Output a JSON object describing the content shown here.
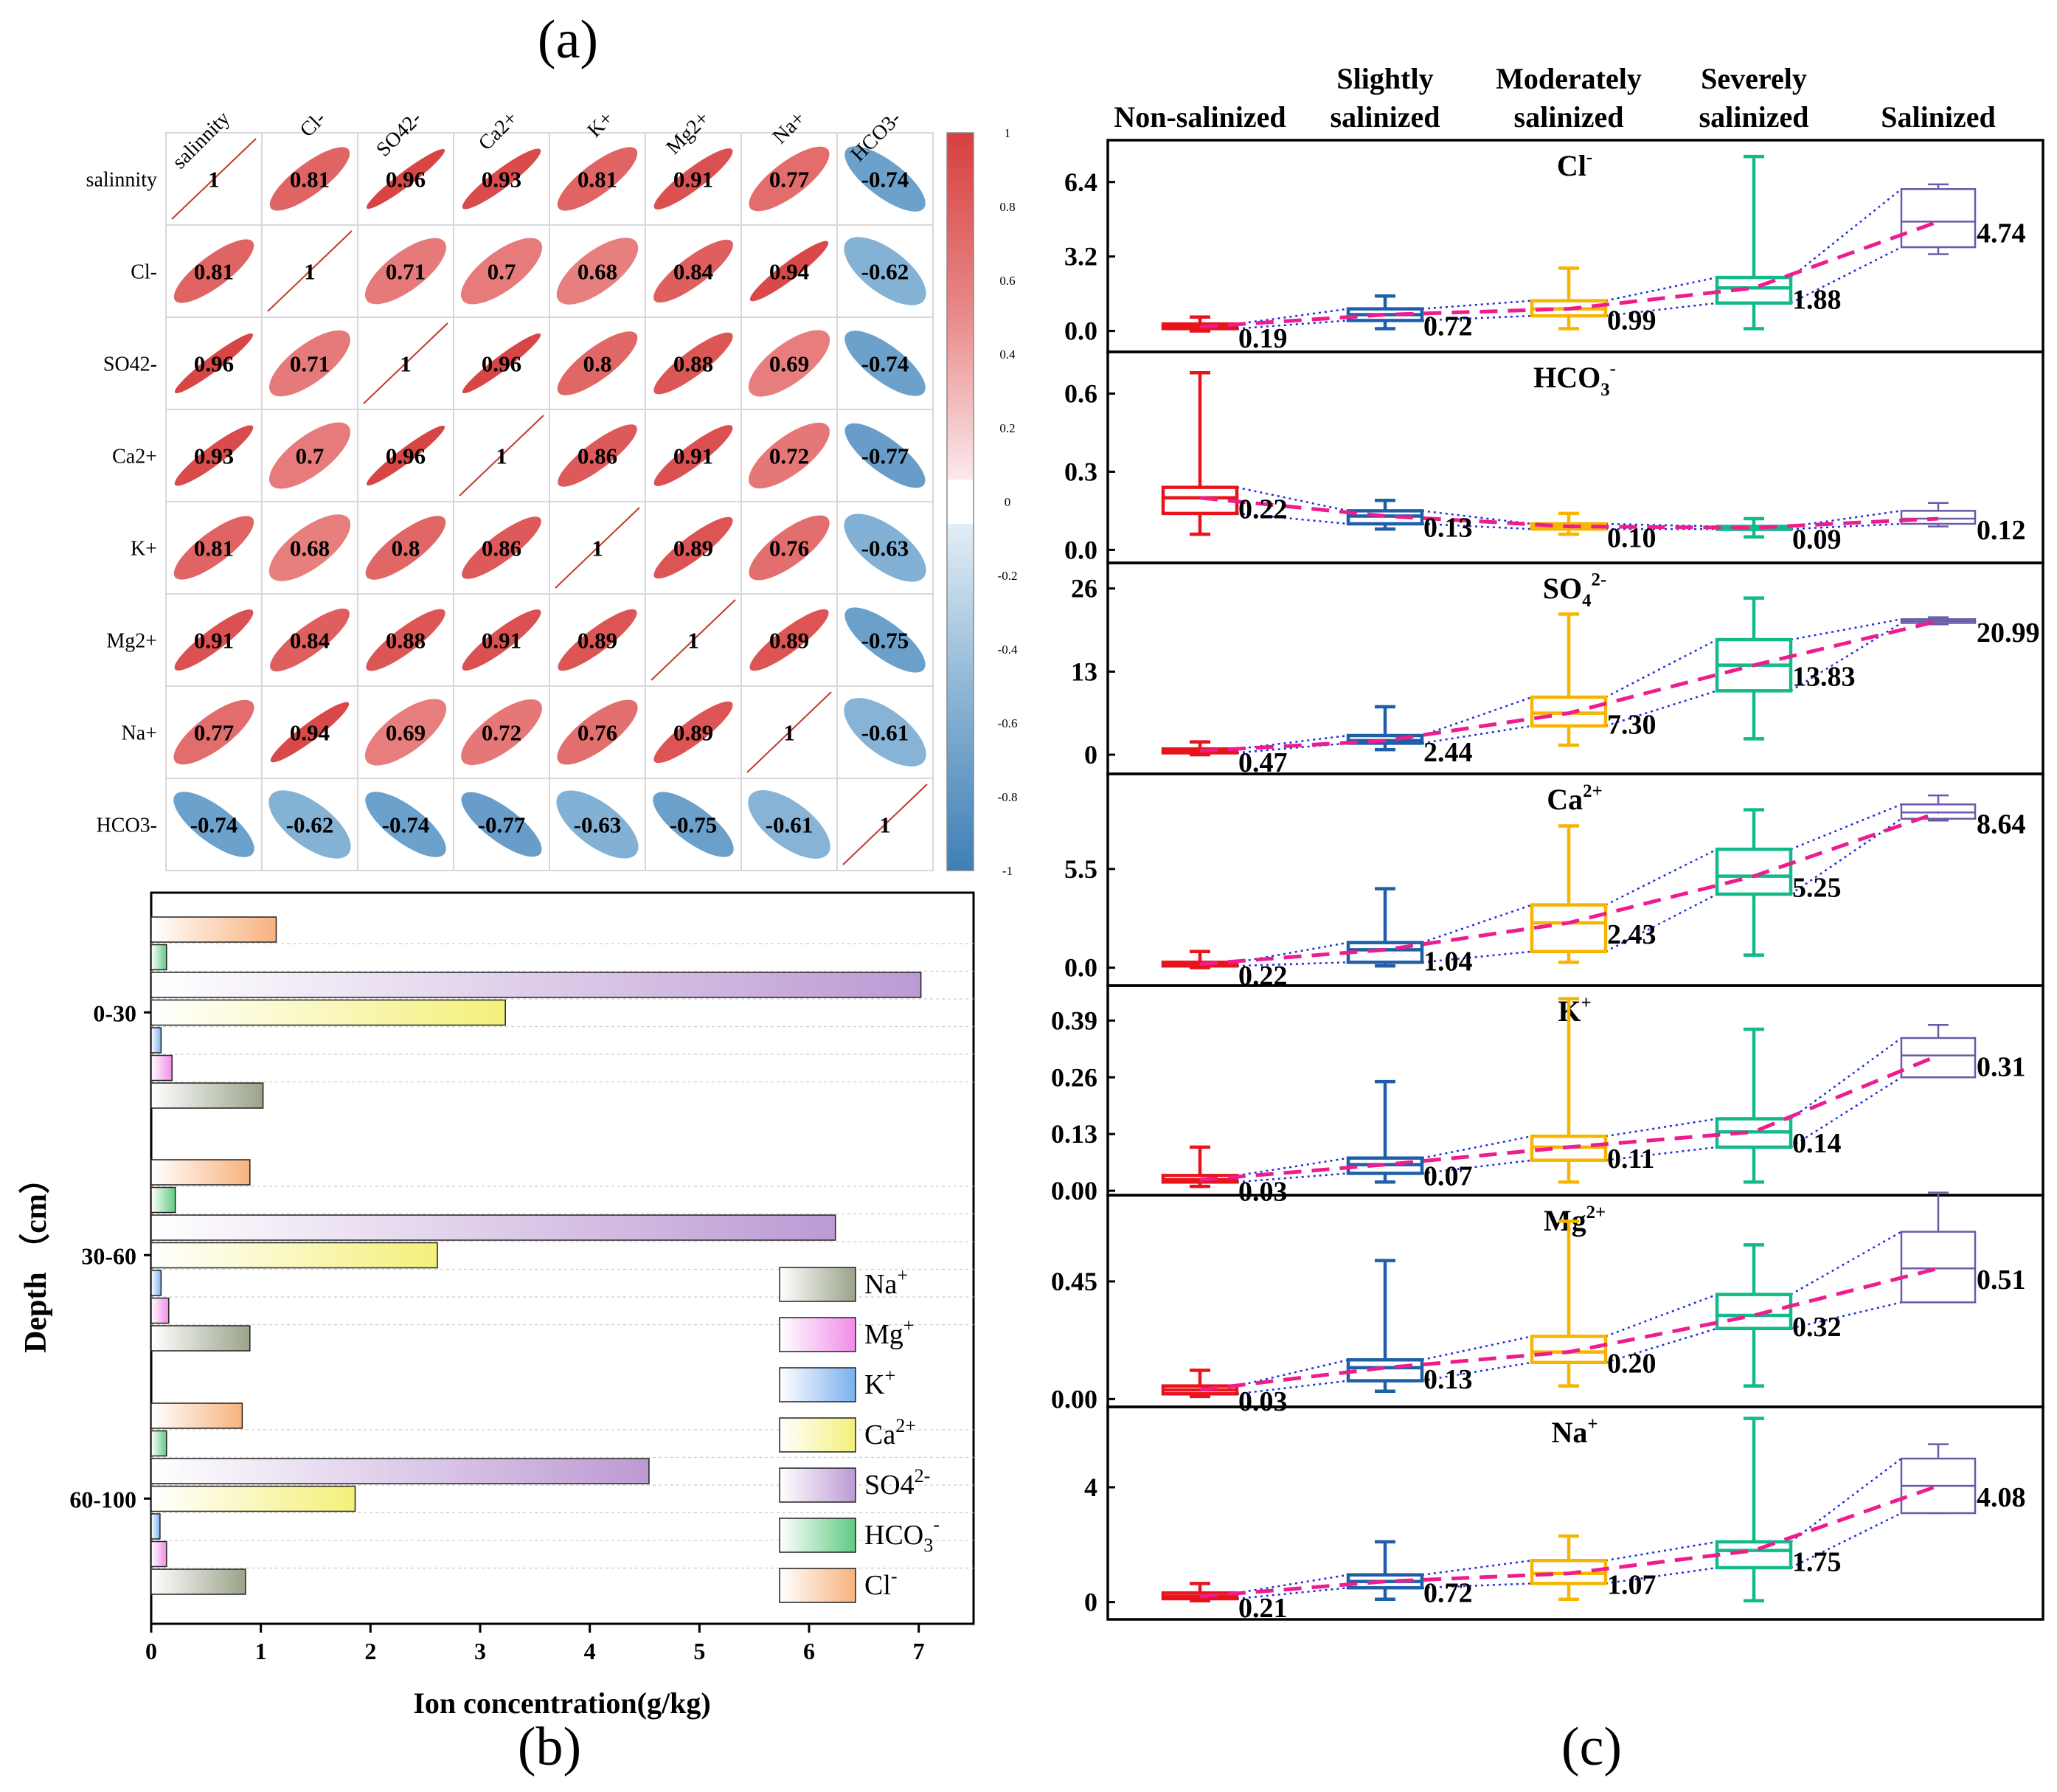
{
  "panel_labels": {
    "a": "(a)",
    "b": "(b)",
    "c": "(c)"
  },
  "colors": {
    "pos": "#d73f3f",
    "neg": "#3f7fb5",
    "diag": "#c0392b",
    "trend": "#ee1c8c",
    "connector": "#1f2fd9"
  },
  "chart_data": [
    {
      "type": "heatmap",
      "title": "(a)",
      "variables": [
        "salinnity",
        "Cl-",
        "SO42-",
        "Ca2+",
        "K+",
        "Mg2+",
        "Na+",
        "HCO3-"
      ],
      "matrix": [
        [
          1,
          0.81,
          0.96,
          0.93,
          0.81,
          0.91,
          0.77,
          -0.74
        ],
        [
          0.81,
          1,
          0.71,
          0.7,
          0.68,
          0.84,
          0.94,
          -0.62
        ],
        [
          0.96,
          0.71,
          1,
          0.96,
          0.8,
          0.88,
          0.69,
          -0.74
        ],
        [
          0.93,
          0.7,
          0.96,
          1,
          0.86,
          0.91,
          0.72,
          -0.77
        ],
        [
          0.81,
          0.68,
          0.8,
          0.86,
          1,
          0.89,
          0.76,
          -0.63
        ],
        [
          0.91,
          0.84,
          0.88,
          0.91,
          0.89,
          1,
          0.89,
          -0.75
        ],
        [
          0.77,
          0.94,
          0.69,
          0.72,
          0.76,
          0.89,
          1,
          -0.61
        ],
        [
          -0.74,
          -0.62,
          -0.74,
          -0.77,
          -0.63,
          -0.75,
          -0.61,
          1
        ]
      ],
      "colorbar_ticks": [
        "1",
        "0.8",
        "0.6",
        "0.4",
        "0.2",
        "0",
        "-0.2",
        "-0.4",
        "-0.6",
        "-0.8",
        "-1"
      ],
      "range": [
        -1,
        1
      ]
    },
    {
      "type": "bar",
      "orientation": "horizontal",
      "title": "(b)",
      "xlabel": "Ion concentration(g/kg)",
      "ylabel": "Depth （cm）",
      "xlim": [
        0,
        7.5
      ],
      "xticks": [
        "0",
        "1",
        "2",
        "3",
        "4",
        "5",
        "6",
        "7"
      ],
      "categories": [
        "0-30",
        "30-60",
        "60-100"
      ],
      "series": [
        {
          "name": "Na",
          "sup": "+",
          "color": "#9aa38a",
          "values": [
            1.02,
            0.9,
            0.86
          ]
        },
        {
          "name": "Mg",
          "sup": "+",
          "color": "#f08ce8",
          "values": [
            0.19,
            0.16,
            0.14
          ]
        },
        {
          "name": "K",
          "sup": "+",
          "color": "#7ab0ef",
          "values": [
            0.09,
            0.09,
            0.08
          ]
        },
        {
          "name": "Ca",
          "sup": "2+",
          "color": "#f4f07a",
          "values": [
            3.23,
            2.61,
            1.86
          ]
        },
        {
          "name": "SO4",
          "sup": "2-",
          "color": "#bc9ad3",
          "values": [
            7.02,
            6.24,
            4.54
          ]
        },
        {
          "name": "HCO",
          "sub": "3",
          "sup": "-",
          "color": "#5fca82",
          "values": [
            0.14,
            0.22,
            0.14
          ]
        },
        {
          "name": "Cl",
          "sup": "-",
          "color": "#f8b27e",
          "values": [
            1.14,
            0.9,
            0.83
          ]
        }
      ]
    },
    {
      "type": "box",
      "title": "(c)",
      "categories": [
        {
          "line1": "Non-salinized",
          "line2": ""
        },
        {
          "line1": "Slightly",
          "line2": "salinized"
        },
        {
          "line1": "Moderately",
          "line2": "salinized"
        },
        {
          "line1": "Severely",
          "line2": "salinized"
        },
        {
          "line1": "",
          "line2": "Salinized"
        }
      ],
      "category_colors": [
        "#e8131b",
        "#1f5fa8",
        "#f7b500",
        "#12b98a",
        "#6a5aa8"
      ],
      "panels": [
        {
          "ion": "Cl",
          "sub": "",
          "sup": "-",
          "ylim": [
            -0.9,
            8.2
          ],
          "yticks": [
            "0.0",
            "3.2",
            "6.4"
          ],
          "ytick_values": [
            0,
            3.2,
            6.4
          ],
          "boxes": [
            [
              0,
              0.1,
              0.18,
              0.3,
              0.6
            ],
            [
              0.1,
              0.45,
              0.7,
              0.95,
              1.5
            ],
            [
              0.1,
              0.65,
              0.95,
              1.3,
              2.7
            ],
            [
              0.1,
              1.2,
              1.85,
              2.3,
              7.5
            ],
            [
              3.3,
              3.6,
              4.7,
              6.1,
              6.3
            ]
          ],
          "means": [
            "0.19",
            "0.72",
            "0.99",
            "1.88",
            "4.74"
          ]
        },
        {
          "ion": "HCO",
          "sub": "3",
          "sup": "-",
          "ylim": [
            -0.05,
            0.76
          ],
          "yticks": [
            "0.0",
            "0.3",
            "0.6"
          ],
          "ytick_values": [
            0,
            0.3,
            0.6
          ],
          "boxes": [
            [
              0.06,
              0.14,
              0.2,
              0.24,
              0.68
            ],
            [
              0.08,
              0.1,
              0.13,
              0.15,
              0.19
            ],
            [
              0.06,
              0.08,
              0.09,
              0.1,
              0.14
            ],
            [
              0.05,
              0.08,
              0.085,
              0.09,
              0.12
            ],
            [
              0.09,
              0.1,
              0.12,
              0.15,
              0.18
            ]
          ],
          "means": [
            "0.22",
            "0.13",
            "0.10",
            "0.09",
            "0.12"
          ]
        },
        {
          "ion": "SO",
          "sub": "4",
          "sup": "2-",
          "ylim": [
            -3,
            30
          ],
          "yticks": [
            "0",
            "13",
            "26"
          ],
          "ytick_values": [
            0,
            13,
            26
          ],
          "boxes": [
            [
              0,
              0.3,
              0.6,
              0.9,
              2
            ],
            [
              0.8,
              1.8,
              2.2,
              3,
              7.5
            ],
            [
              1.5,
              4.5,
              6.5,
              9,
              22
            ],
            [
              2.5,
              10,
              14,
              18,
              24.5
            ],
            [
              20.4,
              20.6,
              20.9,
              21.2,
              21.5
            ]
          ],
          "means": [
            "0.47",
            "2.44",
            "7.30",
            "13.83",
            "20.99"
          ]
        },
        {
          "ion": "Ca",
          "sub": "",
          "sup": "2+",
          "ylim": [
            -1,
            10.8
          ],
          "yticks": [
            "0.0",
            "5.5"
          ],
          "ytick_values": [
            0,
            5.5
          ],
          "boxes": [
            [
              0,
              0.1,
              0.2,
              0.3,
              0.9
            ],
            [
              0.1,
              0.3,
              1,
              1.4,
              4.4
            ],
            [
              0.3,
              0.9,
              2.5,
              3.5,
              7.9
            ],
            [
              0.7,
              4.1,
              5.1,
              6.6,
              8.8
            ],
            [
              8.2,
              8.3,
              8.65,
              9.1,
              9.6
            ]
          ],
          "means": [
            "0.22",
            "1.04",
            "2.43",
            "5.25",
            "8.64"
          ]
        },
        {
          "ion": "K",
          "sub": "",
          "sup": "+",
          "ylim": [
            -0.01,
            0.47
          ],
          "yticks": [
            "0.00",
            "0.13",
            "0.26",
            "0.39"
          ],
          "ytick_values": [
            0,
            0.13,
            0.26,
            0.39
          ],
          "boxes": [
            [
              0.01,
              0.02,
              0.025,
              0.035,
              0.1
            ],
            [
              0.02,
              0.04,
              0.06,
              0.075,
              0.25
            ],
            [
              0.02,
              0.07,
              0.1,
              0.125,
              0.44
            ],
            [
              0.02,
              0.1,
              0.135,
              0.165,
              0.37
            ],
            [
              0.26,
              0.26,
              0.31,
              0.35,
              0.38
            ]
          ],
          "means": [
            "0.03",
            "0.07",
            "0.11",
            "0.14",
            "0.31"
          ]
        },
        {
          "ion": "Mg",
          "sub": "",
          "sup": "2+",
          "ylim": [
            -0.03,
            0.78
          ],
          "yticks": [
            "0.00",
            "0.45"
          ],
          "ytick_values": [
            0,
            0.45
          ],
          "boxes": [
            [
              0.01,
              0.02,
              0.035,
              0.05,
              0.11
            ],
            [
              0.03,
              0.07,
              0.12,
              0.15,
              0.53
            ],
            [
              0.05,
              0.14,
              0.18,
              0.24,
              0.68
            ],
            [
              0.05,
              0.27,
              0.32,
              0.4,
              0.59
            ],
            [
              0.37,
              0.37,
              0.5,
              0.64,
              0.79
            ]
          ],
          "means": [
            "0.03",
            "0.13",
            "0.20",
            "0.32",
            "0.51"
          ]
        },
        {
          "ion": "Na",
          "sub": "",
          "sup": "+",
          "ylim": [
            -0.6,
            6.8
          ],
          "yticks": [
            "0",
            "4"
          ],
          "ytick_values": [
            0,
            4
          ],
          "boxes": [
            [
              0.05,
              0.12,
              0.2,
              0.32,
              0.65
            ],
            [
              0.1,
              0.5,
              0.72,
              0.95,
              2.1
            ],
            [
              0.1,
              0.65,
              1,
              1.45,
              2.3
            ],
            [
              0.05,
              1.2,
              1.8,
              2.1,
              6.4
            ],
            [
              3.1,
              3.1,
              4.05,
              5,
              5.5
            ]
          ],
          "means": [
            "0.21",
            "0.72",
            "1.07",
            "1.75",
            "4.08"
          ]
        }
      ]
    }
  ]
}
